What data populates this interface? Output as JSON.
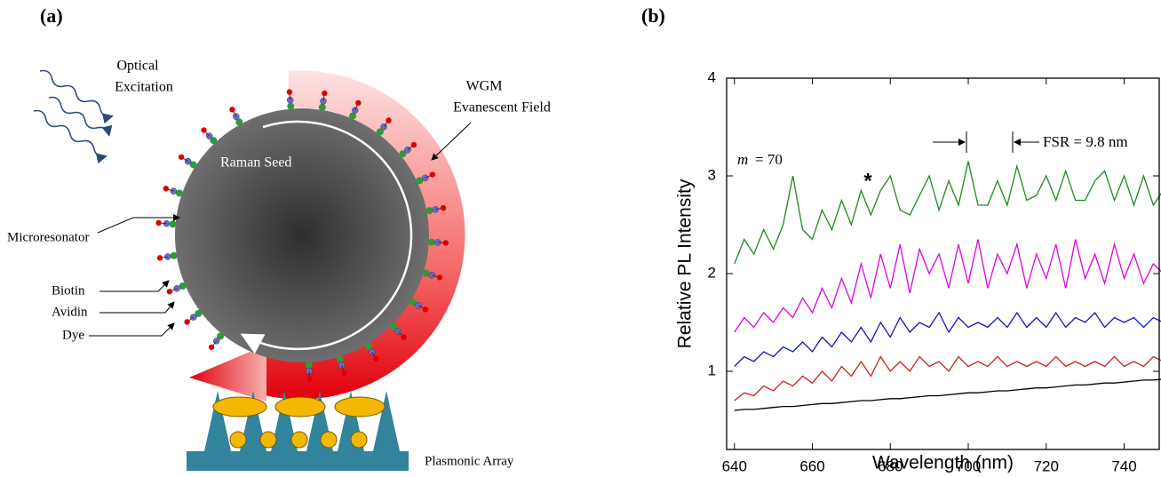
{
  "panels": {
    "a_label": "(a)",
    "b_label": "(b)"
  },
  "diagram": {
    "optical_excitation": [
      "Optical",
      "Excitation"
    ],
    "wgm_field": [
      "WGM",
      "Evanescent Field"
    ],
    "raman_seed": "Raman Seed",
    "microresonator": "Microresonator",
    "biotin": "Biotin",
    "avidin": "Avidin",
    "dye": "Dye",
    "plasmonic_array": "Plasmonic Array"
  },
  "chart_data": {
    "type": "line",
    "xlabel": "Wavelength (nm)",
    "ylabel": "Relative PL Intensity",
    "x": [
      640,
      642.5,
      645,
      647.5,
      650,
      652.5,
      655,
      657.5,
      660,
      662.5,
      665,
      667.5,
      670,
      672.5,
      675,
      677.5,
      680,
      682.5,
      685,
      687.5,
      690,
      692.5,
      695,
      697.5,
      700,
      702.5,
      705,
      707.5,
      710,
      712.5,
      715,
      717.5,
      720,
      722.5,
      725,
      727.5,
      730,
      732.5,
      735,
      737.5,
      740,
      742.5,
      745,
      747.5,
      750
    ],
    "series": [
      {
        "color": "#1e8a1e",
        "values": [
          2.1,
          2.35,
          2.2,
          2.45,
          2.25,
          2.5,
          3.0,
          2.45,
          2.35,
          2.65,
          2.45,
          2.75,
          2.5,
          2.85,
          2.6,
          2.85,
          3.0,
          2.65,
          2.6,
          2.8,
          3.0,
          2.65,
          2.95,
          2.7,
          3.15,
          2.7,
          2.7,
          2.95,
          2.7,
          3.1,
          2.75,
          2.8,
          3.0,
          2.75,
          3.05,
          2.75,
          2.75,
          2.95,
          3.05,
          2.75,
          3.0,
          2.7,
          3.0,
          2.7,
          2.85
        ]
      },
      {
        "color": "#e000e0",
        "values": [
          1.4,
          1.55,
          1.45,
          1.6,
          1.5,
          1.65,
          1.55,
          1.75,
          1.6,
          1.85,
          1.65,
          1.95,
          1.7,
          2.1,
          1.75,
          2.2,
          1.85,
          2.3,
          1.8,
          2.25,
          2.0,
          2.2,
          1.85,
          2.3,
          1.9,
          2.35,
          1.85,
          2.2,
          2.0,
          2.3,
          1.85,
          2.2,
          1.95,
          2.3,
          1.85,
          2.35,
          1.95,
          2.2,
          1.9,
          2.3,
          1.95,
          2.2,
          1.9,
          2.1,
          2.0
        ]
      },
      {
        "color": "#1414c0",
        "values": [
          1.05,
          1.15,
          1.1,
          1.2,
          1.15,
          1.25,
          1.2,
          1.3,
          1.2,
          1.35,
          1.25,
          1.4,
          1.3,
          1.45,
          1.3,
          1.5,
          1.35,
          1.55,
          1.4,
          1.5,
          1.45,
          1.6,
          1.4,
          1.55,
          1.45,
          1.5,
          1.45,
          1.55,
          1.45,
          1.6,
          1.45,
          1.55,
          1.45,
          1.6,
          1.45,
          1.55,
          1.5,
          1.6,
          1.45,
          1.55,
          1.5,
          1.55,
          1.45,
          1.55,
          1.5
        ]
      },
      {
        "color": "#cc2020",
        "values": [
          0.7,
          0.78,
          0.75,
          0.85,
          0.8,
          0.9,
          0.85,
          0.95,
          0.88,
          1.0,
          0.9,
          1.05,
          0.95,
          1.1,
          0.95,
          1.15,
          1.0,
          1.1,
          1.0,
          1.15,
          1.05,
          1.1,
          1.0,
          1.15,
          1.05,
          1.1,
          1.05,
          1.15,
          1.05,
          1.1,
          1.05,
          1.1,
          1.05,
          1.15,
          1.05,
          1.1,
          1.05,
          1.1,
          1.05,
          1.15,
          1.05,
          1.1,
          1.05,
          1.15,
          1.1
        ]
      },
      {
        "color": "#000000",
        "values": [
          0.6,
          0.61,
          0.61,
          0.62,
          0.63,
          0.64,
          0.64,
          0.65,
          0.66,
          0.67,
          0.67,
          0.68,
          0.69,
          0.7,
          0.7,
          0.71,
          0.72,
          0.72,
          0.73,
          0.74,
          0.75,
          0.75,
          0.76,
          0.77,
          0.78,
          0.78,
          0.79,
          0.8,
          0.8,
          0.81,
          0.82,
          0.83,
          0.83,
          0.84,
          0.85,
          0.86,
          0.86,
          0.87,
          0.88,
          0.88,
          0.89,
          0.9,
          0.91,
          0.91,
          0.92
        ]
      }
    ],
    "xlim": [
      638,
      749
    ],
    "ylim": [
      0.2,
      4
    ],
    "xticks": [
      640,
      660,
      680,
      700,
      720,
      740
    ],
    "yticks": [
      1,
      2,
      3,
      4
    ],
    "annotations": {
      "mode_symbol": "m",
      "mode_text": "= 70",
      "asterisk": "*",
      "fsr": "FSR = 9.8 nm"
    }
  }
}
